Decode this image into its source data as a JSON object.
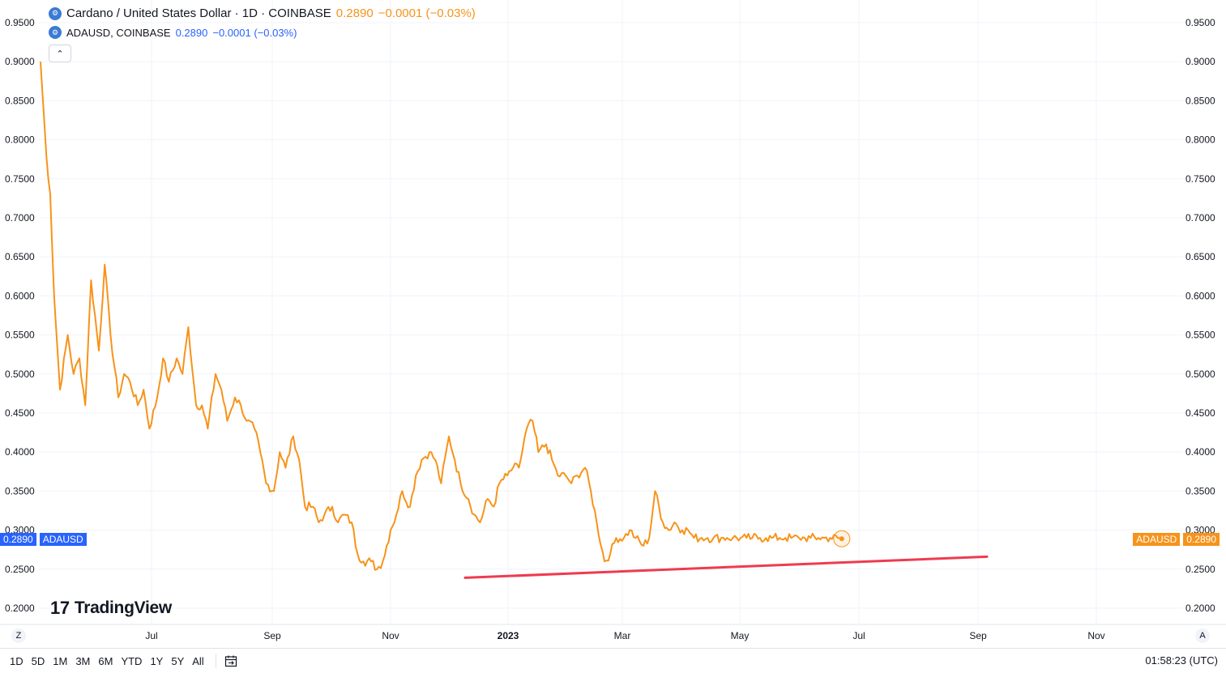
{
  "legend": {
    "main_title": "Cardano / United States Dollar · 1D · COINBASE",
    "main_price": "0.2890",
    "main_change": "−0.0001 (−0.03%)",
    "sub_title": "ADAUSD, COINBASE",
    "sub_price": "0.2890",
    "sub_change": "−0.0001 (−0.03%)",
    "collapse_glyph": "⌃",
    "symbol_icon": "cardano-logo-icon"
  },
  "price_tags": {
    "left_value": "0.2890",
    "left_name": "ADAUSD",
    "right_name": "ADAUSD",
    "right_value": "0.2890"
  },
  "watermark": {
    "mark": "17",
    "text": "TradingView"
  },
  "corners": {
    "left": "Z",
    "right": "A"
  },
  "toolbar": {
    "ranges": [
      "1D",
      "5D",
      "1M",
      "3M",
      "6M",
      "YTD",
      "1Y",
      "5Y",
      "All"
    ],
    "clock": "01:58:23 (UTC)"
  },
  "colors": {
    "line": "#f7931a",
    "trendline": "#ef3b4f",
    "blue_tag": "#2962ff",
    "orange_tag": "#f7931a",
    "grid": "#f0f3fa"
  },
  "chart_data": {
    "type": "line",
    "series": [
      {
        "name": "ADAUSD",
        "x_day": [
          0,
          3,
          5,
          7,
          10,
          14,
          17,
          20,
          23,
          26,
          30,
          33,
          36,
          40,
          43,
          46,
          50,
          53,
          56,
          60,
          63,
          66,
          70,
          73,
          76,
          80,
          83,
          86,
          90,
          93,
          96,
          100,
          103,
          106,
          110,
          113,
          116,
          120,
          123,
          126,
          130,
          133,
          136,
          140,
          143,
          146,
          150,
          153,
          156,
          160,
          163,
          166,
          170,
          173,
          176,
          180,
          183,
          186,
          190,
          193,
          196,
          200,
          203,
          206,
          210,
          213,
          216,
          220,
          223,
          226,
          230,
          233,
          236,
          240,
          243,
          246,
          250,
          253,
          256,
          260,
          263,
          266,
          270,
          273,
          276,
          280,
          283,
          286,
          290,
          293,
          296,
          300,
          303,
          306,
          310,
          313,
          316,
          320,
          323,
          326,
          330,
          333,
          336,
          340,
          343,
          346,
          350,
          353,
          356,
          360,
          363,
          366,
          370,
          373,
          376,
          380,
          383,
          386,
          390,
          393,
          396,
          400,
          403,
          406,
          410,
          412
        ],
        "values": [
          0.9,
          0.78,
          0.73,
          0.6,
          0.48,
          0.55,
          0.5,
          0.52,
          0.46,
          0.62,
          0.53,
          0.64,
          0.55,
          0.47,
          0.5,
          0.49,
          0.46,
          0.48,
          0.43,
          0.47,
          0.52,
          0.49,
          0.52,
          0.5,
          0.56,
          0.46,
          0.46,
          0.43,
          0.5,
          0.48,
          0.44,
          0.47,
          0.46,
          0.44,
          0.43,
          0.4,
          0.36,
          0.35,
          0.4,
          0.38,
          0.42,
          0.39,
          0.33,
          0.33,
          0.31,
          0.32,
          0.33,
          0.31,
          0.32,
          0.31,
          0.27,
          0.26,
          0.26,
          0.25,
          0.26,
          0.3,
          0.32,
          0.35,
          0.33,
          0.37,
          0.39,
          0.4,
          0.39,
          0.36,
          0.42,
          0.39,
          0.36,
          0.34,
          0.32,
          0.31,
          0.34,
          0.33,
          0.36,
          0.37,
          0.38,
          0.38,
          0.43,
          0.44,
          0.4,
          0.41,
          0.39,
          0.37,
          0.37,
          0.36,
          0.37,
          0.38,
          0.35,
          0.31,
          0.26,
          0.27,
          0.29,
          0.29,
          0.3,
          0.29,
          0.28,
          0.29,
          0.35,
          0.31,
          0.3,
          0.31,
          0.3,
          0.3,
          0.29,
          0.29,
          0.29,
          0.29,
          0.29,
          0.29,
          0.29,
          0.29,
          0.29,
          0.29,
          0.29,
          0.29,
          0.29,
          0.29,
          0.29,
          0.29,
          0.29,
          0.29,
          0.29,
          0.29,
          0.29,
          0.29,
          0.29,
          0.289
        ]
      }
    ],
    "trendline": {
      "start_date": "Dec 2022",
      "start_value": 0.239,
      "end_date": "Sep 2023",
      "end_value": 0.266
    },
    "x_tick_labels": [
      "Jul",
      "Sep",
      "Nov",
      "2023",
      "Mar",
      "May",
      "Jul",
      "Sep",
      "Nov"
    ],
    "y_tick_labels": [
      "0.9500",
      "0.9000",
      "0.8500",
      "0.8000",
      "0.7500",
      "0.7000",
      "0.6500",
      "0.6000",
      "0.5500",
      "0.5000",
      "0.4500",
      "0.4000",
      "0.3500",
      "0.3000",
      "0.2500",
      "0.2000"
    ],
    "ylim": [
      0.2,
      0.95
    ],
    "grid": true,
    "last_value": 0.289
  }
}
